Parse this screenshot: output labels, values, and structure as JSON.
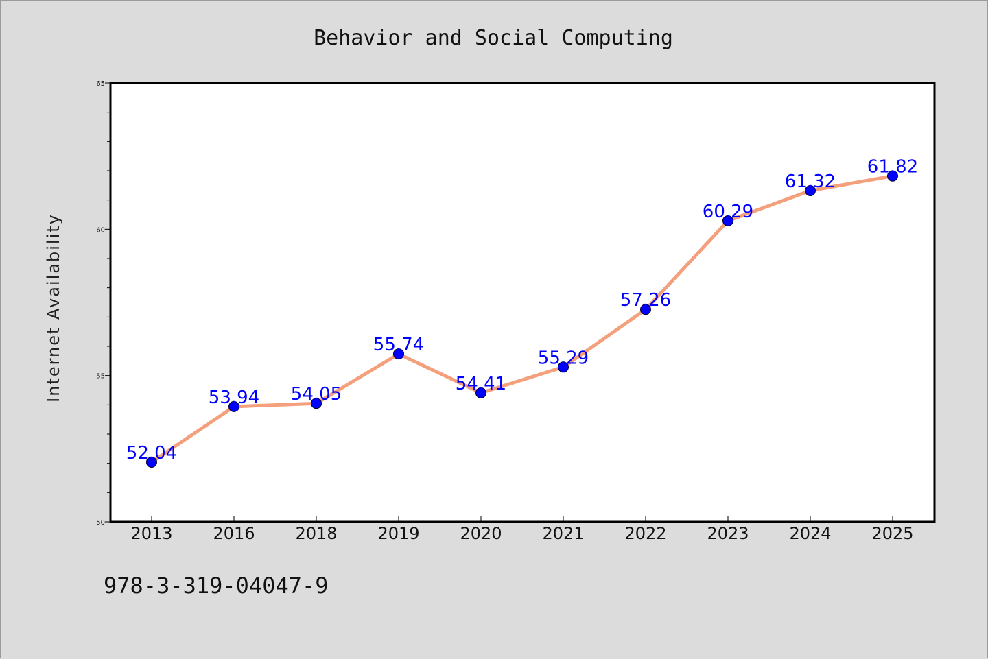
{
  "chart_data": {
    "type": "line",
    "title": "Behavior and Social Computing",
    "xlabel": "",
    "ylabel": "Internet Availability",
    "categories": [
      "2013",
      "2016",
      "2018",
      "2019",
      "2020",
      "2021",
      "2022",
      "2023",
      "2024",
      "2025"
    ],
    "series": [
      {
        "values": [
          52.04,
          53.94,
          54.05,
          55.74,
          54.41,
          55.29,
          57.26,
          60.29,
          61.32,
          61.82
        ],
        "labels": [
          "52.04",
          "53.94",
          "54.05",
          "55.74",
          "54.41",
          "55.29",
          "57.26",
          "60.29",
          "61.32",
          "61.82"
        ]
      }
    ],
    "ylim": [
      50,
      65
    ],
    "yticks": [
      "50",
      "55",
      "60",
      "65"
    ],
    "grid": false,
    "line_color": "#f4a07c",
    "marker_color": "#0000ff",
    "label_color": "#0000ff"
  },
  "footer": {
    "text": "978-3-319-04047-9"
  }
}
